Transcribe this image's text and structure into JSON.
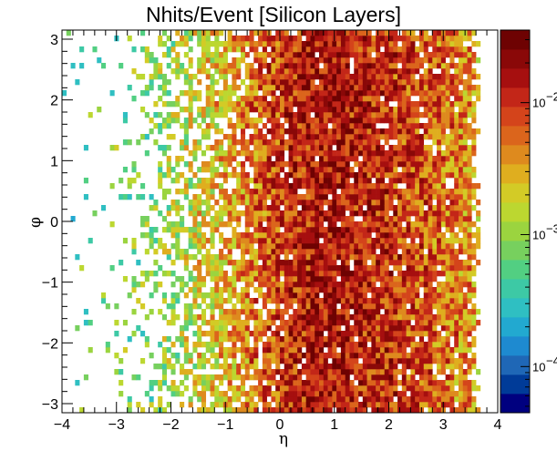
{
  "chart_data": {
    "type": "heatmap",
    "title": "Nhits/Event [Silicon Layers]",
    "xlabel": "η",
    "ylabel": "φ",
    "xlim": [
      -4,
      4
    ],
    "ylim": [
      -3.15,
      3.15
    ],
    "x_ticks": [
      "−4",
      "−3",
      "−2",
      "−1",
      "0",
      "1",
      "2",
      "3",
      "4"
    ],
    "y_ticks": [
      "−3",
      "−2",
      "−1",
      "0",
      "1",
      "2",
      "3"
    ],
    "bins": {
      "eta_min": -4,
      "eta_max": 4,
      "n_eta": 100,
      "phi_min": -3.15,
      "phi_max": 3.15,
      "n_phi": 70
    },
    "eta_profile": {
      "eta": [
        -4.0,
        -3.5,
        -3.0,
        -2.5,
        -2.0,
        -1.5,
        -1.0,
        -0.5,
        0.0,
        0.5,
        1.0,
        1.5,
        2.0,
        2.5,
        3.0,
        3.5,
        3.7
      ],
      "occupancy": [
        0.03,
        0.05,
        0.09,
        0.2,
        0.45,
        0.62,
        0.72,
        0.82,
        0.93,
        0.96,
        0.96,
        0.95,
        0.94,
        0.93,
        0.92,
        0.9,
        0.0
      ],
      "log10_level": [
        -3.25,
        -3.2,
        -3.15,
        -3.1,
        -2.95,
        -2.75,
        -2.55,
        -2.3,
        -2.05,
        -1.9,
        -1.85,
        -1.9,
        -2.0,
        -2.1,
        -2.25,
        -2.4,
        -2.6
      ]
    },
    "z_scale": "log",
    "zlim_log10": [
      -4.35,
      -1.45
    ],
    "colorbar_tick_labels": [
      {
        "text": "10",
        "exp": "−2",
        "log10": -2
      },
      {
        "text": "10",
        "exp": "−3",
        "log10": -3
      },
      {
        "text": "10",
        "exp": "−4",
        "log10": -4
      }
    ],
    "palette": [
      "#00007f",
      "#003b98",
      "#1f67b6",
      "#1e8ad0",
      "#22a9d0",
      "#2fbfc2",
      "#3dc9a5",
      "#52cf82",
      "#77d05e",
      "#9bd43f",
      "#bcd730",
      "#d3cb26",
      "#dfae1f",
      "#de8a1e",
      "#db651c",
      "#d4441b",
      "#c32618",
      "#a60f0f",
      "#8a0808",
      "#6e0202"
    ],
    "grid": false,
    "legend": "none"
  }
}
